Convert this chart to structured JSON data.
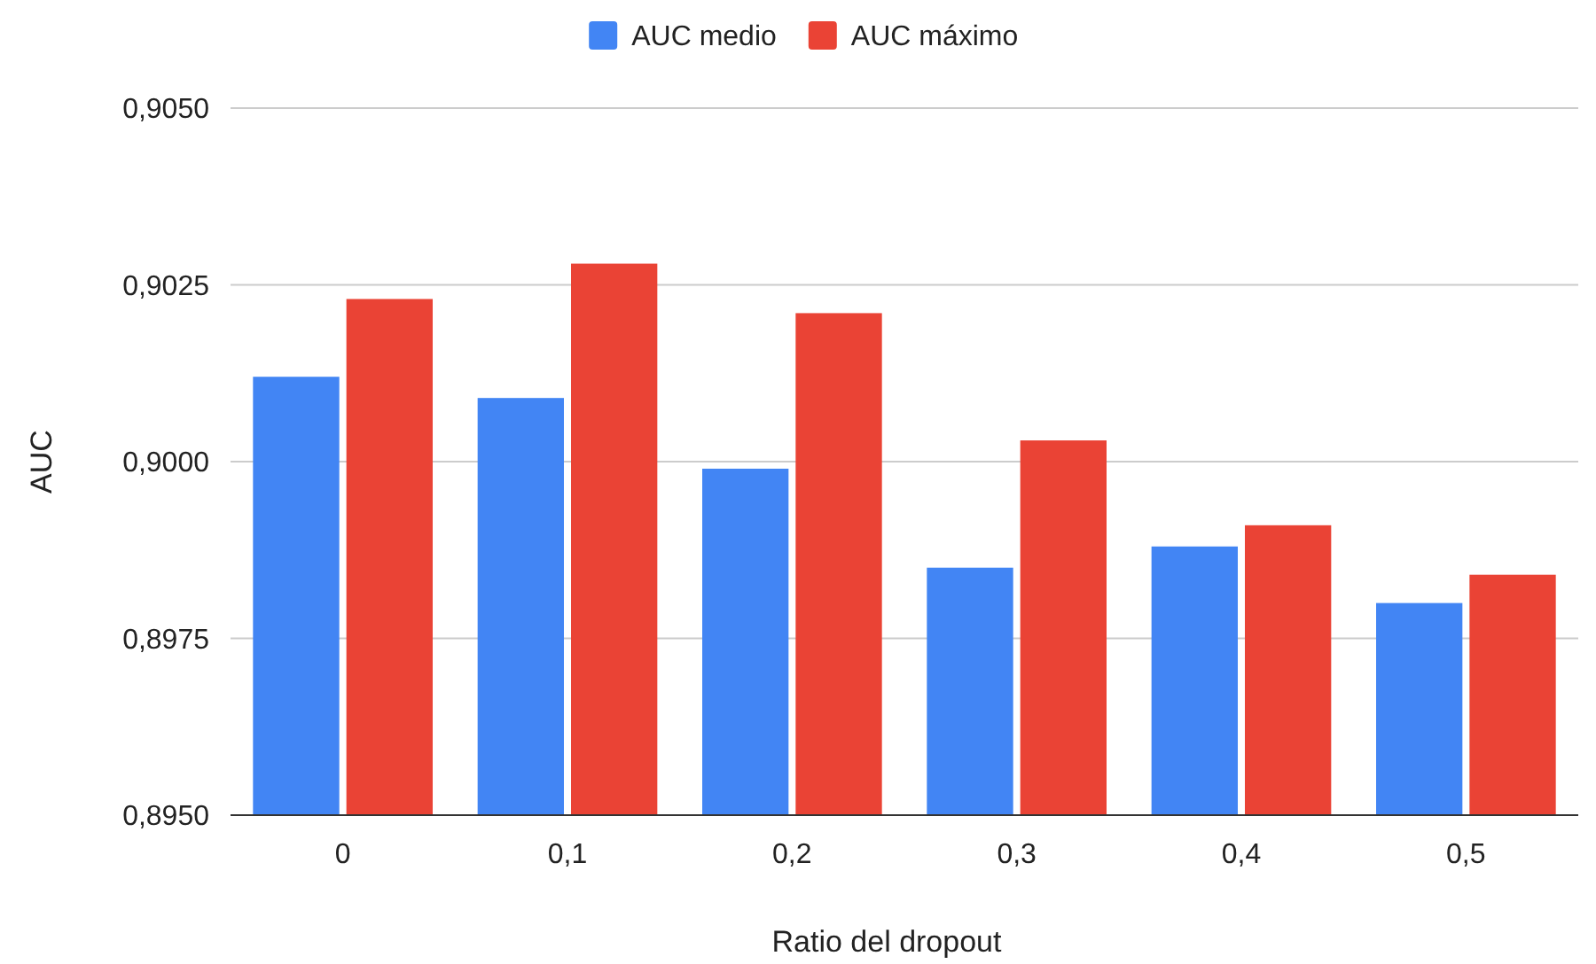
{
  "chart_data": {
    "type": "bar",
    "xlabel": "Ratio del dropout",
    "ylabel": "AUC",
    "categories": [
      "0",
      "0,1",
      "0,2",
      "0,3",
      "0,4",
      "0,5"
    ],
    "series": [
      {
        "name": "AUC medio",
        "color": "#4285f4",
        "values": [
          0.9012,
          0.9009,
          0.8999,
          0.8985,
          0.8988,
          0.898
        ]
      },
      {
        "name": "AUC máximo",
        "color": "#ea4335",
        "values": [
          0.9023,
          0.9028,
          0.9021,
          0.9003,
          0.8991,
          0.8984
        ]
      }
    ],
    "ylim": [
      0.895,
      0.905
    ],
    "yticks": [
      {
        "value": 0.895,
        "label": "0,8950"
      },
      {
        "value": 0.8975,
        "label": "0,8975"
      },
      {
        "value": 0.9,
        "label": "0,9000"
      },
      {
        "value": 0.9025,
        "label": "0,9025"
      },
      {
        "value": 0.905,
        "label": "0,9050"
      }
    ],
    "grid": "y",
    "legend": "top"
  }
}
